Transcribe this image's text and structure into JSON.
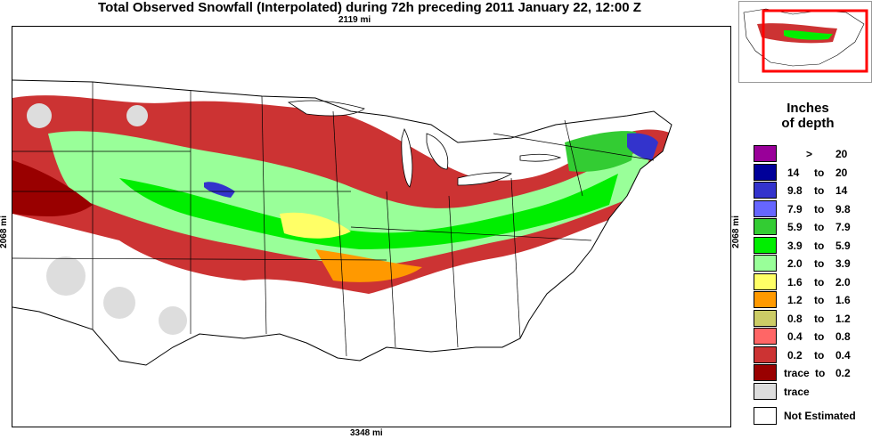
{
  "title": "Total Observed Snowfall (Interpolated) during 72h preceding 2011 January 22, 12:00 Z",
  "dimensions": {
    "top": "2119 mi",
    "bottom": "3348 mi",
    "left": "2068 mi",
    "right": "2068 mi"
  },
  "legend": {
    "title_line1": "Inches",
    "title_line2": "of depth",
    "items": [
      {
        "low": "",
        "sep": ">",
        "high": "20",
        "color": "#990099"
      },
      {
        "low": "14",
        "sep": "to",
        "high": "20",
        "color": "#000099"
      },
      {
        "low": "9.8",
        "sep": "to",
        "high": "14",
        "color": "#3333cc"
      },
      {
        "low": "7.9",
        "sep": "to",
        "high": "9.8",
        "color": "#6666ff"
      },
      {
        "low": "5.9",
        "sep": "to",
        "high": "7.9",
        "color": "#33cc33"
      },
      {
        "low": "3.9",
        "sep": "to",
        "high": "5.9",
        "color": "#00ee00"
      },
      {
        "low": "2.0",
        "sep": "to",
        "high": "3.9",
        "color": "#99ff99"
      },
      {
        "low": "1.6",
        "sep": "to",
        "high": "2.0",
        "color": "#ffff66"
      },
      {
        "low": "1.2",
        "sep": "to",
        "high": "1.6",
        "color": "#ff9900"
      },
      {
        "low": "0.8",
        "sep": "to",
        "high": "1.2",
        "color": "#cccc66"
      },
      {
        "low": "0.4",
        "sep": "to",
        "high": "0.8",
        "color": "#ff6666"
      },
      {
        "low": "0.2",
        "sep": "to",
        "high": "0.4",
        "color": "#cc3333"
      },
      {
        "low": "trace",
        "sep": "to",
        "high": "0.2",
        "color": "#990000"
      },
      {
        "low": "trace",
        "sep": "",
        "high": "",
        "color": "#dddddd"
      }
    ],
    "not_estimated": "Not Estimated"
  },
  "colors": {
    "inset_box": "#ff0000",
    "state_lines": "#000000",
    "lakes": "#ffffff",
    "ocean": "#ffffff"
  }
}
